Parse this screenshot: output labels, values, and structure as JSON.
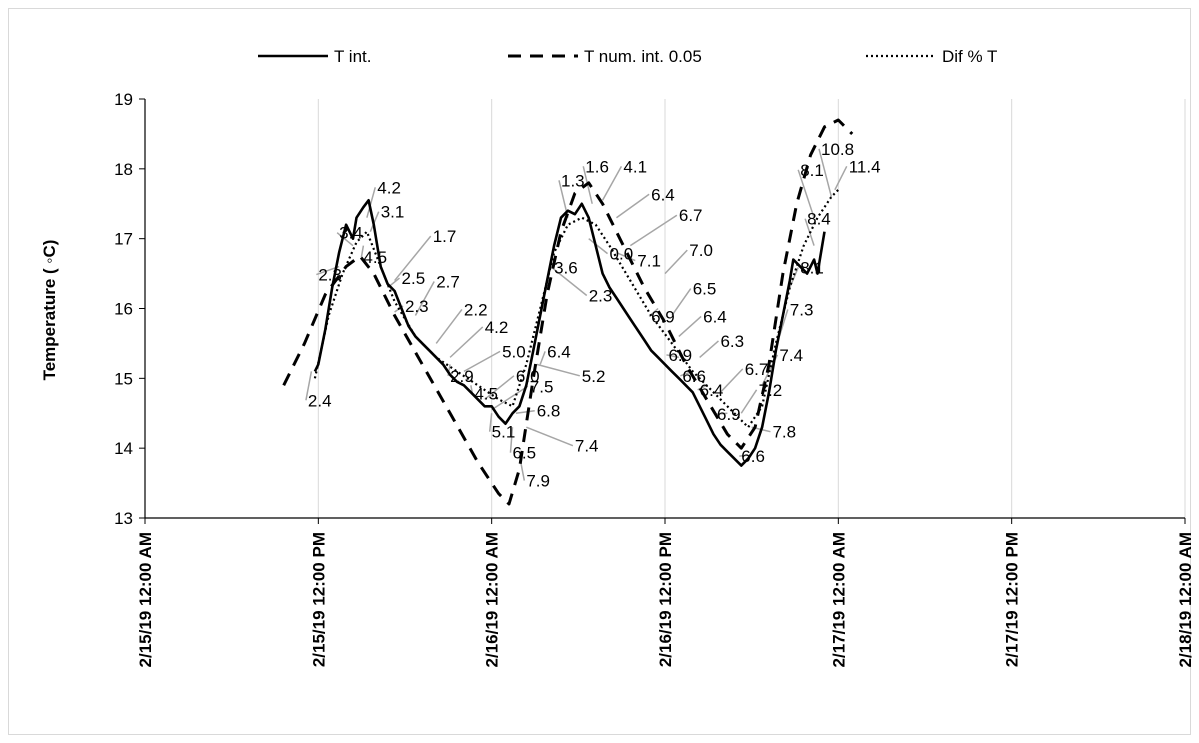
{
  "chart_data": {
    "type": "line",
    "title": "",
    "xlabel": "",
    "ylabel": "Temperature ( ◦C)",
    "ylim": [
      13,
      19
    ],
    "yticks": [
      "13",
      "14",
      "15",
      "16",
      "17",
      "18",
      "19"
    ],
    "xticks": [
      "2/15/19 12:00 AM",
      "2/15/19 12:00 PM",
      "2/16/19 12:00 AM",
      "2/16/19 12:00 PM",
      "2/17/19 12:00 AM",
      "2/17/19 12:00 PM",
      "2/18/19 12:00 AM"
    ],
    "x_unit": "days since 2/15/19 12:00 AM",
    "xlim": [
      0,
      3
    ],
    "grid": "vertical",
    "legend_position": "top",
    "series": [
      {
        "name": "T int.",
        "style": "solid",
        "points": [
          [
            0.49,
            15.1
          ],
          [
            0.5,
            15.2
          ],
          [
            0.52,
            15.7
          ],
          [
            0.54,
            16.3
          ],
          [
            0.56,
            16.8
          ],
          [
            0.58,
            17.2
          ],
          [
            0.6,
            17.0
          ],
          [
            0.61,
            17.3
          ],
          [
            0.63,
            17.45
          ],
          [
            0.645,
            17.55
          ],
          [
            0.66,
            17.2
          ],
          [
            0.68,
            16.6
          ],
          [
            0.7,
            16.35
          ],
          [
            0.72,
            16.25
          ],
          [
            0.74,
            16.0
          ],
          [
            0.76,
            15.75
          ],
          [
            0.78,
            15.6
          ],
          [
            0.8,
            15.5
          ],
          [
            0.82,
            15.4
          ],
          [
            0.84,
            15.3
          ],
          [
            0.86,
            15.2
          ],
          [
            0.88,
            15.05
          ],
          [
            0.9,
            14.95
          ],
          [
            0.92,
            14.9
          ],
          [
            0.94,
            14.8
          ],
          [
            0.96,
            14.7
          ],
          [
            0.98,
            14.6
          ],
          [
            1.0,
            14.6
          ],
          [
            1.02,
            14.45
          ],
          [
            1.04,
            14.35
          ],
          [
            1.06,
            14.5
          ],
          [
            1.08,
            14.6
          ],
          [
            1.1,
            14.9
          ],
          [
            1.12,
            15.4
          ],
          [
            1.14,
            15.9
          ],
          [
            1.16,
            16.4
          ],
          [
            1.18,
            16.9
          ],
          [
            1.2,
            17.3
          ],
          [
            1.22,
            17.4
          ],
          [
            1.24,
            17.35
          ],
          [
            1.26,
            17.5
          ],
          [
            1.28,
            17.3
          ],
          [
            1.3,
            16.9
          ],
          [
            1.32,
            16.5
          ],
          [
            1.34,
            16.3
          ],
          [
            1.36,
            16.15
          ],
          [
            1.38,
            16.0
          ],
          [
            1.4,
            15.85
          ],
          [
            1.42,
            15.7
          ],
          [
            1.44,
            15.55
          ],
          [
            1.46,
            15.4
          ],
          [
            1.48,
            15.3
          ],
          [
            1.5,
            15.2
          ],
          [
            1.52,
            15.1
          ],
          [
            1.54,
            15.0
          ],
          [
            1.56,
            14.9
          ],
          [
            1.58,
            14.8
          ],
          [
            1.6,
            14.6
          ],
          [
            1.62,
            14.4
          ],
          [
            1.64,
            14.2
          ],
          [
            1.66,
            14.05
          ],
          [
            1.68,
            13.95
          ],
          [
            1.7,
            13.85
          ],
          [
            1.72,
            13.75
          ],
          [
            1.74,
            13.85
          ],
          [
            1.76,
            14.0
          ],
          [
            1.78,
            14.3
          ],
          [
            1.8,
            14.8
          ],
          [
            1.82,
            15.4
          ],
          [
            1.84,
            15.9
          ],
          [
            1.86,
            16.4
          ],
          [
            1.87,
            16.7
          ],
          [
            1.89,
            16.6
          ],
          [
            1.91,
            16.5
          ],
          [
            1.93,
            16.7
          ],
          [
            1.94,
            16.5
          ],
          [
            1.95,
            16.8
          ],
          [
            1.96,
            17.1
          ]
        ]
      },
      {
        "name": "T num. int. 0.05",
        "style": "dashed",
        "points": [
          [
            0.4,
            14.9
          ],
          [
            0.46,
            15.5
          ],
          [
            0.52,
            16.2
          ],
          [
            0.58,
            16.6
          ],
          [
            0.62,
            16.75
          ],
          [
            0.66,
            16.5
          ],
          [
            0.72,
            15.9
          ],
          [
            0.8,
            15.2
          ],
          [
            0.88,
            14.5
          ],
          [
            0.96,
            13.8
          ],
          [
            1.02,
            13.35
          ],
          [
            1.05,
            13.2
          ],
          [
            1.08,
            13.7
          ],
          [
            1.12,
            15.0
          ],
          [
            1.16,
            16.2
          ],
          [
            1.2,
            17.1
          ],
          [
            1.24,
            17.65
          ],
          [
            1.28,
            17.8
          ],
          [
            1.32,
            17.5
          ],
          [
            1.38,
            16.9
          ],
          [
            1.44,
            16.3
          ],
          [
            1.5,
            15.8
          ],
          [
            1.56,
            15.2
          ],
          [
            1.62,
            14.7
          ],
          [
            1.68,
            14.2
          ],
          [
            1.72,
            14.0
          ],
          [
            1.76,
            14.3
          ],
          [
            1.8,
            15.2
          ],
          [
            1.84,
            16.5
          ],
          [
            1.88,
            17.5
          ],
          [
            1.92,
            18.2
          ],
          [
            1.96,
            18.6
          ],
          [
            2.0,
            18.7
          ],
          [
            2.04,
            18.5
          ]
        ]
      },
      {
        "name": "Dif % T",
        "style": "dotted",
        "points": [
          [
            0.49,
            15.0
          ],
          [
            0.53,
            15.9
          ],
          [
            0.57,
            16.5
          ],
          [
            0.61,
            16.95
          ],
          [
            0.64,
            17.1
          ],
          [
            0.68,
            16.6
          ],
          [
            0.72,
            16.1
          ],
          [
            0.78,
            15.6
          ],
          [
            0.84,
            15.3
          ],
          [
            0.9,
            15.1
          ],
          [
            0.96,
            14.9
          ],
          [
            1.02,
            14.7
          ],
          [
            1.06,
            14.6
          ],
          [
            1.1,
            15.2
          ],
          [
            1.14,
            16.0
          ],
          [
            1.18,
            16.8
          ],
          [
            1.22,
            17.2
          ],
          [
            1.26,
            17.3
          ],
          [
            1.3,
            17.2
          ],
          [
            1.34,
            16.9
          ],
          [
            1.4,
            16.4
          ],
          [
            1.46,
            15.9
          ],
          [
            1.52,
            15.5
          ],
          [
            1.58,
            15.1
          ],
          [
            1.64,
            14.8
          ],
          [
            1.7,
            14.5
          ],
          [
            1.74,
            14.3
          ],
          [
            1.78,
            14.6
          ],
          [
            1.82,
            15.5
          ],
          [
            1.86,
            16.3
          ],
          [
            1.9,
            16.9
          ],
          [
            1.94,
            17.3
          ],
          [
            1.98,
            17.6
          ],
          [
            2.0,
            17.7
          ]
        ]
      }
    ],
    "data_labels": [
      {
        "text": "2.4",
        "x": 0.47,
        "y": 14.6,
        "px": 0.48,
        "py": 15.1
      },
      {
        "text": "2.3",
        "x": 0.5,
        "y": 16.4,
        "px": 0.56,
        "py": 16.6
      },
      {
        "text": "3.4",
        "x": 0.56,
        "y": 17.0,
        "px": 0.6,
        "py": 16.9
      },
      {
        "text": "4.2",
        "x": 0.67,
        "y": 17.65,
        "px": 0.64,
        "py": 17.3
      },
      {
        "text": "3.1",
        "x": 0.68,
        "y": 17.3,
        "px": 0.65,
        "py": 17.1
      },
      {
        "text": "4.5",
        "x": 0.63,
        "y": 16.65,
        "px": 0.63,
        "py": 16.9
      },
      {
        "text": "1.7",
        "x": 0.83,
        "y": 16.95,
        "px": 0.72,
        "py": 16.4
      },
      {
        "text": "2.5",
        "x": 0.74,
        "y": 16.35,
        "px": 0.7,
        "py": 16.3
      },
      {
        "text": "2.7",
        "x": 0.84,
        "y": 16.3,
        "px": 0.78,
        "py": 15.9
      },
      {
        "text": "2.3",
        "x": 0.75,
        "y": 15.95,
        "px": 0.72,
        "py": 15.95
      },
      {
        "text": "2.2",
        "x": 0.92,
        "y": 15.9,
        "px": 0.84,
        "py": 15.5
      },
      {
        "text": "4.2",
        "x": 0.98,
        "y": 15.65,
        "px": 0.88,
        "py": 15.3
      },
      {
        "text": "5.0",
        "x": 1.03,
        "y": 15.3,
        "px": 0.92,
        "py": 15.1
      },
      {
        "text": "2.9",
        "x": 0.88,
        "y": 14.95,
        "px": 0.88,
        "py": 15.2
      },
      {
        "text": "4.5",
        "x": 0.95,
        "y": 14.7,
        "px": 0.94,
        "py": 14.9
      },
      {
        "text": "6.0",
        "x": 1.07,
        "y": 14.95,
        "px": 0.98,
        "py": 14.7
      },
      {
        "text": "7.5",
        "x": 1.11,
        "y": 14.8,
        "px": 1.0,
        "py": 14.55
      },
      {
        "text": "5.1",
        "x": 1.0,
        "y": 14.15,
        "px": 1.0,
        "py": 14.5
      },
      {
        "text": "6.8",
        "x": 1.13,
        "y": 14.45,
        "px": 1.07,
        "py": 14.5
      },
      {
        "text": "6.5",
        "x": 1.06,
        "y": 13.85,
        "px": 1.06,
        "py": 14.3
      },
      {
        "text": "7.4",
        "x": 1.24,
        "y": 13.95,
        "px": 1.1,
        "py": 14.3
      },
      {
        "text": "7.9",
        "x": 1.1,
        "y": 13.45,
        "px": 1.08,
        "py": 13.9
      },
      {
        "text": "6.4",
        "x": 1.16,
        "y": 15.3,
        "px": 1.14,
        "py": 15.2
      },
      {
        "text": "5.2",
        "x": 1.26,
        "y": 14.95,
        "px": 1.13,
        "py": 15.2
      },
      {
        "text": "3.6",
        "x": 1.18,
        "y": 16.5,
        "px": 1.17,
        "py": 16.6
      },
      {
        "text": "2.3",
        "x": 1.28,
        "y": 16.1,
        "px": 1.17,
        "py": 16.6
      },
      {
        "text": "1.3",
        "x": 1.2,
        "y": 17.75,
        "px": 1.22,
        "py": 17.3
      },
      {
        "text": "1.6",
        "x": 1.27,
        "y": 17.95,
        "px": 1.29,
        "py": 17.5
      },
      {
        "text": "4.1",
        "x": 1.38,
        "y": 17.95,
        "px": 1.32,
        "py": 17.55
      },
      {
        "text": "6.4",
        "x": 1.46,
        "y": 17.55,
        "px": 1.36,
        "py": 17.3
      },
      {
        "text": "6.7",
        "x": 1.54,
        "y": 17.25,
        "px": 1.4,
        "py": 16.9
      },
      {
        "text": "0.0",
        "x": 1.34,
        "y": 16.7,
        "px": 1.28,
        "py": 17.0
      },
      {
        "text": "7.1",
        "x": 1.42,
        "y": 16.6,
        "px": 1.36,
        "py": 16.8
      },
      {
        "text": "7.0",
        "x": 1.57,
        "y": 16.75,
        "px": 1.5,
        "py": 16.5
      },
      {
        "text": "6.5",
        "x": 1.58,
        "y": 16.2,
        "px": 1.52,
        "py": 15.9
      },
      {
        "text": "6.9",
        "x": 1.46,
        "y": 15.8,
        "px": 1.48,
        "py": 16.0
      },
      {
        "text": "6.4",
        "x": 1.61,
        "y": 15.8,
        "px": 1.54,
        "py": 15.6
      },
      {
        "text": "6.3",
        "x": 1.66,
        "y": 15.45,
        "px": 1.6,
        "py": 15.3
      },
      {
        "text": "6.9",
        "x": 1.51,
        "y": 15.25,
        "px": 1.54,
        "py": 15.3
      },
      {
        "text": "6.6",
        "x": 1.55,
        "y": 14.95,
        "px": 1.58,
        "py": 15.1
      },
      {
        "text": "6.7",
        "x": 1.73,
        "y": 15.05,
        "px": 1.66,
        "py": 14.8
      },
      {
        "text": "6.4",
        "x": 1.6,
        "y": 14.75,
        "px": 1.62,
        "py": 14.9
      },
      {
        "text": "7.2",
        "x": 1.77,
        "y": 14.75,
        "px": 1.72,
        "py": 14.5
      },
      {
        "text": "6.9",
        "x": 1.65,
        "y": 14.4,
        "px": 1.68,
        "py": 14.5
      },
      {
        "text": "7.4",
        "x": 1.83,
        "y": 15.25,
        "px": 1.78,
        "py": 14.9
      },
      {
        "text": "7.8",
        "x": 1.81,
        "y": 14.15,
        "px": 1.75,
        "py": 14.3
      },
      {
        "text": "6.6",
        "x": 1.72,
        "y": 13.8,
        "px": 1.74,
        "py": 13.9
      },
      {
        "text": "7.3",
        "x": 1.86,
        "y": 15.9,
        "px": 1.83,
        "py": 15.6
      },
      {
        "text": "8.1",
        "x": 1.89,
        "y": 16.5,
        "px": 1.86,
        "py": 16.3
      },
      {
        "text": "8.4",
        "x": 1.91,
        "y": 17.2,
        "px": 1.93,
        "py": 16.9
      },
      {
        "text": "8.1",
        "x": 1.89,
        "y": 17.9,
        "px": 1.93,
        "py": 17.3
      },
      {
        "text": "10.8",
        "x": 1.95,
        "y": 18.2,
        "px": 1.98,
        "py": 17.6
      },
      {
        "text": "11.4",
        "x": 2.03,
        "y": 17.95,
        "px": 1.99,
        "py": 17.7
      }
    ]
  }
}
